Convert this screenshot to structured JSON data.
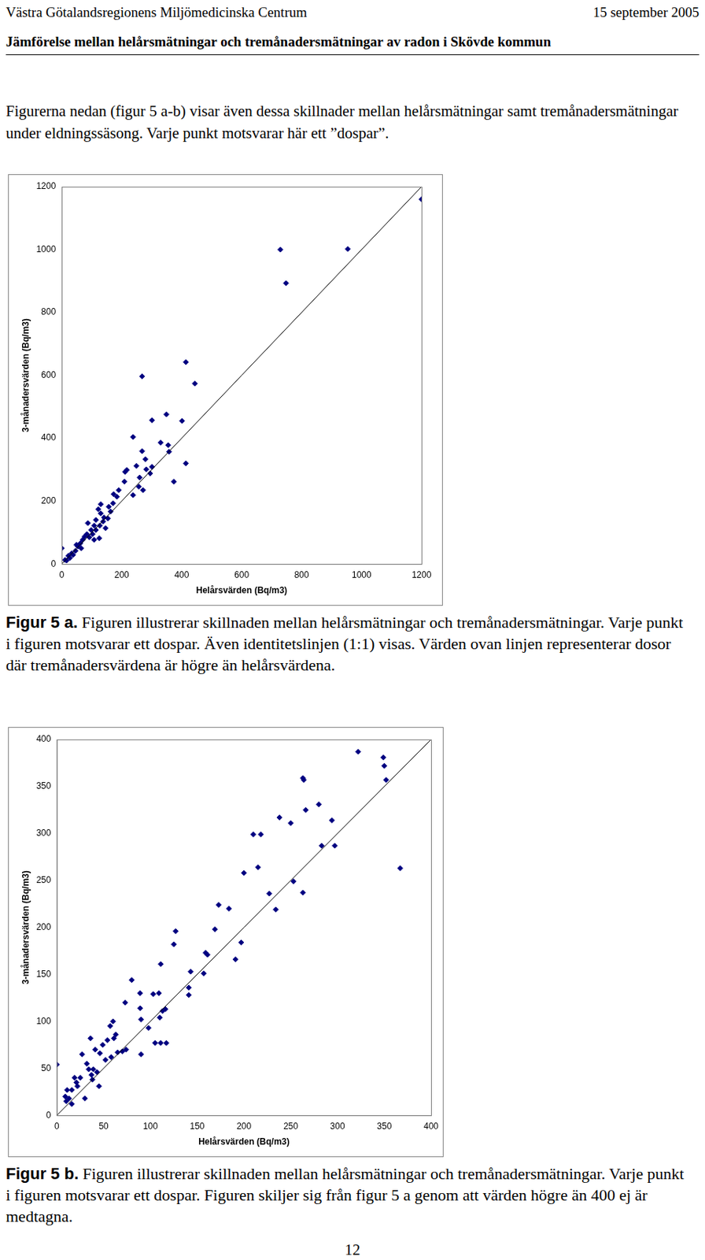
{
  "header": {
    "organization": "Västra Götalandsregionens Miljömedicinska Centrum",
    "date": "15 september 2005",
    "title": "Jämförelse mellan helårsmätningar och tremånadersmätningar av radon i Skövde kommun"
  },
  "intro": "Figurerna nedan (figur 5 a-b) visar även dessa skillnader mellan helårsmätningar samt tremånadersmätningar under eldningssäsong. Varje punkt motsvarar här ett ”dospar”.",
  "chart_data": [
    {
      "type": "scatter",
      "x_label": "Helårsvärden (Bq/m3)",
      "y_label": "3-månadersvärden (Bq/m3)",
      "color": "#000080",
      "marker": "diamond",
      "grid": false,
      "xlim": [
        0,
        1200
      ],
      "ylim": [
        0,
        1200
      ],
      "xticks": [
        0,
        200,
        400,
        600,
        800,
        1000,
        1200
      ],
      "yticks": [
        0,
        200,
        400,
        600,
        800,
        1000,
        1200
      ],
      "reference_line": {
        "x": [
          0,
          1200
        ],
        "y": [
          0,
          1200
        ]
      },
      "x": [
        1200,
        729,
        954,
        748,
        414,
        444,
        268,
        414,
        374,
        401,
        349,
        355,
        358,
        330,
        301,
        238,
        268,
        279,
        282,
        295,
        301,
        249,
        260,
        271,
        238,
        257,
        211,
        217,
        209,
        190,
        184,
        173,
        171,
        157,
        163,
        141,
        130,
        122,
        130,
        114,
        108,
        98,
        87,
        84,
        70,
        62,
        54,
        46,
        38,
        27,
        16,
        0,
        11,
        22,
        33,
        49,
        65,
        76,
        92,
        103,
        114,
        127,
        138,
        146,
        154,
        125,
        108
      ],
      "values": [
        1160,
        1000,
        1002,
        893,
        642,
        574,
        597,
        320,
        262,
        455,
        476,
        378,
        357,
        386,
        457,
        404,
        359,
        333,
        301,
        288,
        309,
        312,
        275,
        235,
        219,
        246,
        293,
        299,
        262,
        235,
        214,
        222,
        193,
        182,
        167,
        148,
        190,
        174,
        161,
        140,
        122,
        108,
        130,
        95,
        77,
        66,
        56,
        42,
        29,
        19,
        11,
        50,
        13,
        26,
        34,
        61,
        50,
        87,
        85,
        95,
        108,
        122,
        135,
        114,
        145,
        82,
        77
      ]
    },
    {
      "type": "scatter",
      "x_label": "Helårsvärden (Bq/m3)",
      "y_label": "3-månadersvärden (Bq/m3)",
      "color": "#000080",
      "marker": "diamond",
      "grid": false,
      "xlim": [
        0,
        400
      ],
      "ylim": [
        0,
        400
      ],
      "xticks": [
        0,
        50,
        100,
        150,
        200,
        250,
        300,
        350,
        400
      ],
      "yticks": [
        0,
        50,
        100,
        150,
        200,
        250,
        300,
        350,
        400
      ],
      "reference_line": {
        "x": [
          0,
          400
        ],
        "y": [
          0,
          400
        ]
      },
      "x": [
        322,
        349,
        350,
        352,
        367,
        263,
        264,
        266,
        280,
        294,
        283,
        297,
        238,
        250,
        210,
        218,
        215,
        200,
        227,
        234,
        253,
        263,
        173,
        184,
        169,
        197,
        191,
        159,
        161,
        157,
        143,
        127,
        125,
        141,
        141,
        111,
        109,
        103,
        116,
        113,
        110,
        117,
        111,
        105,
        80,
        89,
        89,
        90,
        98,
        90,
        73,
        60,
        57,
        63,
        61,
        54,
        49,
        46,
        41,
        36,
        27,
        25,
        32,
        34,
        37,
        43,
        45,
        38,
        30,
        21,
        19,
        16,
        13,
        10,
        9,
        16,
        0,
        52,
        58,
        65,
        70,
        74,
        39,
        22,
        11
      ],
      "values": [
        387,
        381,
        372,
        357,
        263,
        359,
        357,
        325,
        331,
        314,
        287,
        287,
        317,
        311,
        299,
        299,
        264,
        258,
        236,
        219,
        249,
        237,
        224,
        220,
        198,
        184,
        166,
        173,
        171,
        151,
        153,
        196,
        182,
        136,
        128,
        161,
        130,
        129,
        113,
        111,
        104,
        77,
        77,
        77,
        144,
        130,
        114,
        102,
        93,
        65,
        120,
        100,
        95,
        86,
        82,
        80,
        75,
        66,
        70,
        82,
        65,
        40,
        55,
        49,
        43,
        46,
        31,
        38,
        18,
        35,
        40,
        27,
        18,
        15,
        20,
        12,
        54,
        59,
        62,
        67,
        68,
        70,
        49,
        31,
        27
      ]
    }
  ],
  "captions": [
    {
      "label": "Figur 5 a.",
      "text": "Figuren illustrerar skillnaden mellan helårsmätningar och tremånadersmätningar. Varje punkt i figuren motsvarar ett dospar. Även identitetslinjen (1:1) visas. Värden ovan linjen representerar dosor där tremånadersvärdena är högre än helårsvärdena."
    },
    {
      "label": "Figur 5 b.",
      "text": "Figuren illustrerar skillnaden mellan helårsmätningar och tremånadersmätningar. Varje punkt i figuren motsvarar ett dospar. Figuren skiljer sig från figur 5 a genom att värden högre än 400 ej är medtagna."
    }
  ],
  "page_number": 12
}
